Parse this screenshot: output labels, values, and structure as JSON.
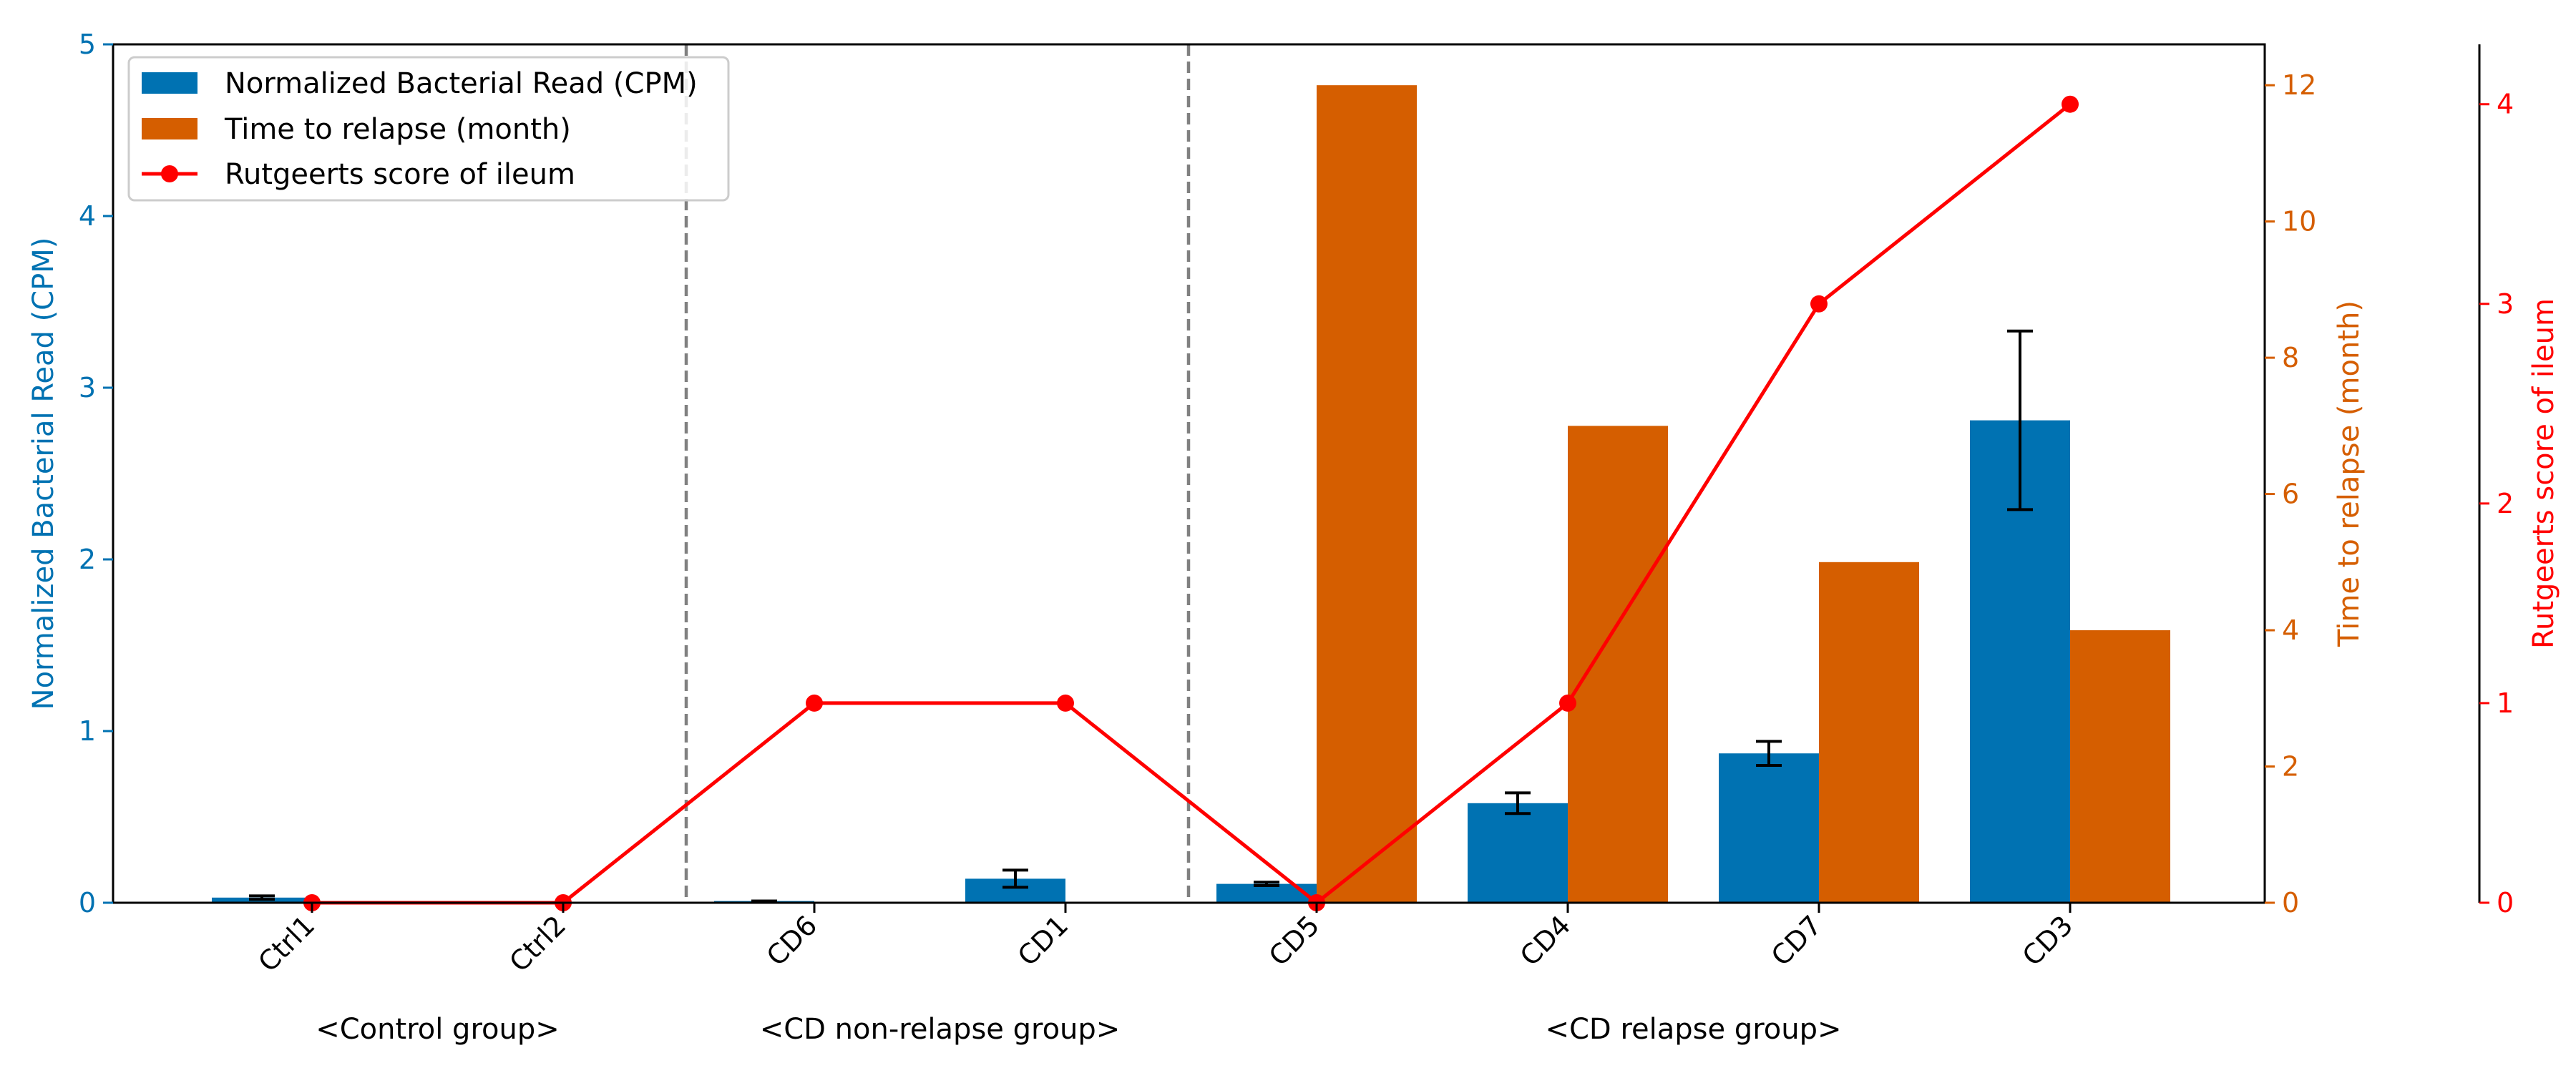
{
  "chart_data": {
    "type": "bar",
    "categories": [
      "Ctrl1",
      "Ctrl2",
      "CD6",
      "CD1",
      "CD5",
      "CD4",
      "CD7",
      "CD3"
    ],
    "groups": [
      {
        "label": "<Control group>",
        "categories": [
          "Ctrl1",
          "Ctrl2"
        ]
      },
      {
        "label": "<CD non-relapse group>",
        "categories": [
          "CD6",
          "CD1"
        ]
      },
      {
        "label": "<CD relapse group>",
        "categories": [
          "CD5",
          "CD4",
          "CD7",
          "CD3"
        ]
      }
    ],
    "series": [
      {
        "name": "Normalized Bacterial Read (CPM)",
        "type": "bar",
        "axis": "left",
        "color": "#0072b2",
        "values": [
          0.03,
          0.0,
          0.01,
          0.14,
          0.11,
          0.58,
          0.87,
          2.81
        ],
        "errors": [
          0.01,
          0.0,
          0.0,
          0.05,
          0.01,
          0.06,
          0.07,
          0.52
        ]
      },
      {
        "name": "Time to relapse (month)",
        "type": "bar",
        "axis": "right",
        "color": "#d55e00",
        "values": [
          0,
          0,
          0,
          0,
          12,
          7,
          5,
          4
        ]
      },
      {
        "name": "Rutgeerts score of ileum",
        "type": "line",
        "axis": "right2",
        "color": "#ff0000",
        "values": [
          0,
          0,
          1,
          1,
          0,
          1,
          3,
          4
        ]
      }
    ],
    "axes": {
      "left": {
        "label": "Normalized Bacterial Read (CPM)",
        "range": [
          0,
          5
        ],
        "ticks": [
          "0",
          "1",
          "2",
          "3",
          "4",
          "5"
        ],
        "color": "#0072b2"
      },
      "right": {
        "label": "Time to relapse (month)",
        "range": [
          0,
          12.6
        ],
        "ticks": [
          "0",
          "2",
          "4",
          "6",
          "8",
          "10",
          "12"
        ],
        "color": "#d55e00"
      },
      "right2": {
        "label": "Rutgeerts score of ileum",
        "range": [
          0,
          4.3
        ],
        "ticks": [
          "0",
          "1",
          "2",
          "3",
          "4"
        ],
        "color": "#ff0000"
      }
    },
    "legend": {
      "position": "top-left"
    },
    "grid": false
  }
}
